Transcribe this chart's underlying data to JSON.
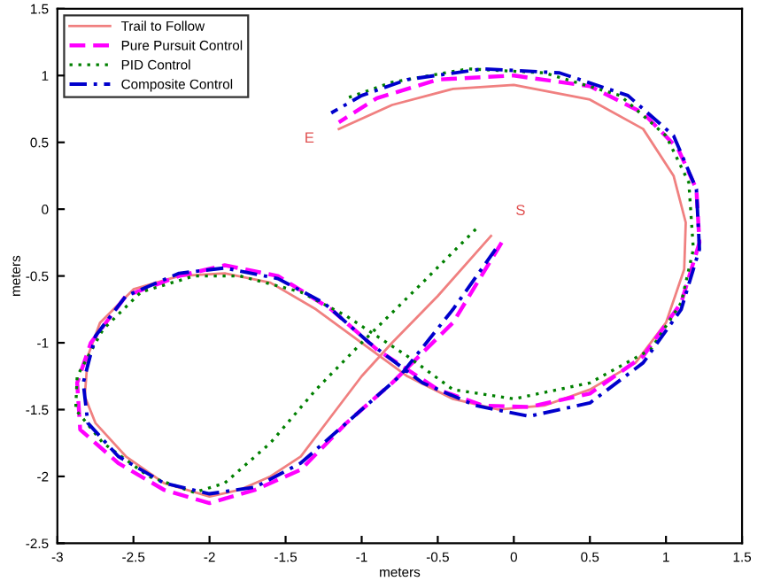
{
  "chart_data": {
    "type": "line",
    "xlabel": "meters",
    "ylabel": "meters",
    "xlim": [
      -3,
      1.5
    ],
    "ylim": [
      -2.5,
      1.5
    ],
    "xticks": [
      -3,
      -2.5,
      -2,
      -1.5,
      -1,
      -0.5,
      0,
      0.5,
      1,
      1.5
    ],
    "yticks": [
      -2.5,
      -2,
      -1.5,
      -1,
      -0.5,
      0,
      0.5,
      1,
      1.5
    ],
    "grid": false,
    "legend": "top left",
    "marker": "none",
    "annotations": [
      "S",
      "E"
    ],
    "series": [
      {
        "name": "Trail to Follow",
        "color": "#f08080",
        "line_style": "solid",
        "x": [
          -0.15,
          -0.5,
          -0.8,
          -1.0,
          -1.2,
          -1.4,
          -1.6,
          -1.8,
          -2.0,
          -2.3,
          -2.55,
          -2.75,
          -2.82,
          -2.8,
          -2.72,
          -2.5,
          -2.2,
          -1.9,
          -1.6,
          -1.3,
          -1.0,
          -0.7,
          -0.4,
          -0.1,
          0.2,
          0.5,
          0.8,
          1.0,
          1.12,
          1.13,
          1.05,
          0.85,
          0.5,
          0.0,
          -0.4,
          -0.8,
          -1.15
        ],
        "values": [
          -0.2,
          -0.65,
          -1.0,
          -1.25,
          -1.55,
          -1.85,
          -2.0,
          -2.1,
          -2.15,
          -2.05,
          -1.85,
          -1.6,
          -1.4,
          -1.1,
          -0.85,
          -0.6,
          -0.5,
          -0.48,
          -0.55,
          -0.75,
          -1.0,
          -1.25,
          -1.42,
          -1.5,
          -1.47,
          -1.35,
          -1.15,
          -0.85,
          -0.45,
          -0.1,
          0.25,
          0.6,
          0.82,
          0.93,
          0.9,
          0.78,
          0.6
        ]
      },
      {
        "name": "Pure Pursuit Control",
        "color": "#ff00ff",
        "line_style": "dashed",
        "x": [
          -0.08,
          -0.4,
          -0.8,
          -1.1,
          -1.4,
          -1.7,
          -2.0,
          -2.3,
          -2.6,
          -2.85,
          -2.87,
          -2.78,
          -2.55,
          -2.2,
          -1.9,
          -1.55,
          -1.2,
          -0.9,
          -0.5,
          -0.2,
          0.1,
          0.5,
          0.85,
          1.1,
          1.22,
          1.2,
          1.08,
          0.85,
          0.5,
          0.0,
          -0.5,
          -0.9,
          -1.15
        ],
        "values": [
          -0.25,
          -0.85,
          -1.3,
          -1.6,
          -1.95,
          -2.1,
          -2.2,
          -2.1,
          -1.9,
          -1.65,
          -1.3,
          -1.0,
          -0.65,
          -0.5,
          -0.42,
          -0.5,
          -0.75,
          -1.05,
          -1.35,
          -1.47,
          -1.48,
          -1.38,
          -1.1,
          -0.7,
          -0.25,
          0.15,
          0.45,
          0.72,
          0.92,
          1.0,
          0.97,
          0.83,
          0.65
        ]
      },
      {
        "name": "PID Control",
        "color": "#008000",
        "line_style": "dotted",
        "x": [
          -0.25,
          -0.6,
          -1.0,
          -1.3,
          -1.6,
          -1.9,
          -2.1,
          -2.4,
          -2.7,
          -2.88,
          -2.87,
          -2.7,
          -2.45,
          -2.1,
          -1.8,
          -1.4,
          -1.1,
          -0.7,
          -0.4,
          0.0,
          0.5,
          0.9,
          1.1,
          1.18,
          1.15,
          1.0,
          0.7,
          0.2,
          -0.3,
          -0.8,
          -1.1
        ],
        "values": [
          -0.15,
          -0.55,
          -1.0,
          -1.35,
          -1.75,
          -2.05,
          -2.12,
          -2.0,
          -1.75,
          -1.5,
          -1.25,
          -0.9,
          -0.62,
          -0.5,
          -0.5,
          -0.62,
          -0.8,
          -1.1,
          -1.35,
          -1.42,
          -1.3,
          -1.05,
          -0.7,
          -0.3,
          0.2,
          0.55,
          0.85,
          1.02,
          1.05,
          0.95,
          0.83
        ]
      },
      {
        "name": "Composite Control",
        "color": "#0000cc",
        "line_style": "dashdot",
        "x": [
          -0.12,
          -0.4,
          -0.75,
          -1.05,
          -1.4,
          -1.7,
          -2.0,
          -2.3,
          -2.6,
          -2.8,
          -2.83,
          -2.75,
          -2.55,
          -2.2,
          -1.9,
          -1.55,
          -1.25,
          -0.95,
          -0.6,
          -0.25,
          0.1,
          0.5,
          0.85,
          1.1,
          1.22,
          1.2,
          1.05,
          0.75,
          0.3,
          -0.2,
          -0.7,
          -1.0,
          -1.2
        ],
        "values": [
          -0.3,
          -0.75,
          -1.25,
          -1.55,
          -1.9,
          -2.08,
          -2.13,
          -2.05,
          -1.85,
          -1.6,
          -1.3,
          -0.95,
          -0.65,
          -0.48,
          -0.44,
          -0.52,
          -0.7,
          -1.0,
          -1.3,
          -1.47,
          -1.55,
          -1.45,
          -1.15,
          -0.75,
          -0.3,
          0.15,
          0.55,
          0.85,
          1.02,
          1.05,
          0.97,
          0.85,
          0.72
        ]
      }
    ]
  }
}
